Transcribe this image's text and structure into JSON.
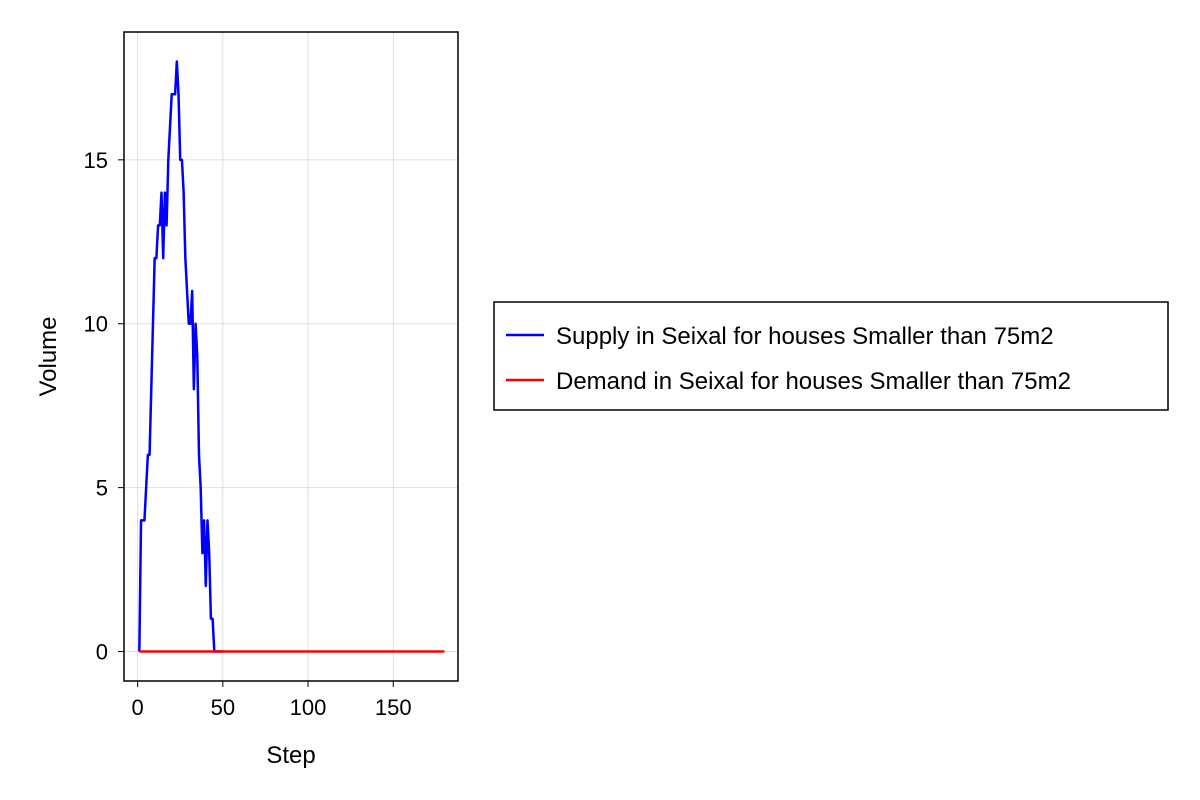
{
  "chart_data": {
    "type": "line",
    "xlabel": "Step",
    "ylabel": "Volume",
    "xlim": [
      -8,
      188
    ],
    "ylim": [
      -0.9,
      18.9
    ],
    "xticks": [
      0,
      50,
      100,
      150
    ],
    "yticks": [
      0,
      5,
      10,
      15
    ],
    "grid": true,
    "legend_position": "right",
    "series": [
      {
        "name": "Supply in Seixal for houses Smaller than 75m2",
        "color": "#0000ff",
        "x": [
          1,
          2,
          3,
          4,
          5,
          6,
          7,
          8,
          9,
          10,
          11,
          12,
          13,
          14,
          15,
          16,
          17,
          18,
          19,
          20,
          21,
          22,
          23,
          24,
          25,
          26,
          27,
          28,
          29,
          30,
          31,
          32,
          33,
          34,
          35,
          36,
          37,
          38,
          39,
          40,
          41,
          42,
          43,
          44,
          45,
          46,
          47,
          48,
          49,
          50
        ],
        "y": [
          0,
          4,
          4,
          4,
          5,
          6,
          6,
          8,
          10,
          12,
          12,
          13,
          13,
          14,
          12,
          14,
          13,
          15,
          16,
          17,
          17,
          17,
          18,
          17,
          15,
          15,
          14,
          12,
          11,
          10,
          10,
          11,
          8,
          10,
          9,
          6,
          5,
          3,
          4,
          2,
          4,
          3,
          1,
          1,
          0,
          0,
          0,
          0,
          0,
          0
        ]
      },
      {
        "name": "Demand in Seixal for houses Smaller than 75m2",
        "color": "#ff0000",
        "x": [
          1,
          180
        ],
        "y": [
          0,
          0
        ]
      }
    ]
  }
}
